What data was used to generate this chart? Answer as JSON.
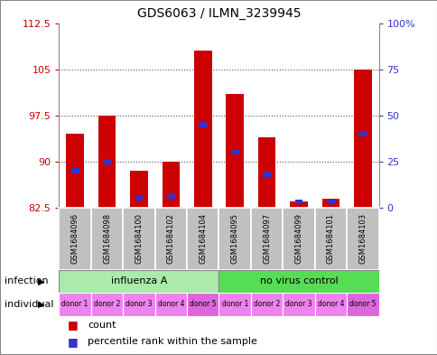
{
  "title": "GDS6063 / ILMN_3239945",
  "samples": [
    "GSM1684096",
    "GSM1684098",
    "GSM1684100",
    "GSM1684102",
    "GSM1684104",
    "GSM1684095",
    "GSM1684097",
    "GSM1684099",
    "GSM1684101",
    "GSM1684103"
  ],
  "count_values": [
    94.5,
    97.5,
    88.5,
    90.0,
    108.0,
    101.0,
    94.0,
    83.5,
    84.0,
    105.0
  ],
  "percentile_values": [
    20,
    25,
    5,
    6,
    45,
    30,
    18,
    3,
    3,
    40
  ],
  "ymin": 82.5,
  "ymax": 112.5,
  "yticks": [
    82.5,
    90,
    97.5,
    105,
    112.5
  ],
  "ytick_labels": [
    "82.5",
    "90",
    "97.5",
    "105",
    "112.5"
  ],
  "y2ticks": [
    0,
    25,
    50,
    75,
    100
  ],
  "y2tick_labels": [
    "0",
    "25",
    "50",
    "75",
    "100%"
  ],
  "bar_color": "#CC0000",
  "blue_color": "#3333CC",
  "axis_color_left": "#CC0000",
  "axis_color_right": "#3333CC",
  "sample_bg_color": "#C0C0C0",
  "inf_color_light": "#AAEAAA",
  "inf_color_dark": "#55DD55",
  "individual_color": "#EE82EE",
  "legend_count_label": "count",
  "legend_percentile_label": "percentile rank within the sample",
  "individual_labels": [
    "donor 1",
    "donor 2",
    "donor 3",
    "donor 4",
    "donor 5",
    "donor 1",
    "donor 2",
    "donor 3",
    "donor 4",
    "donor 5"
  ],
  "grid_linestyle": "dotted",
  "grid_color": "#555555"
}
